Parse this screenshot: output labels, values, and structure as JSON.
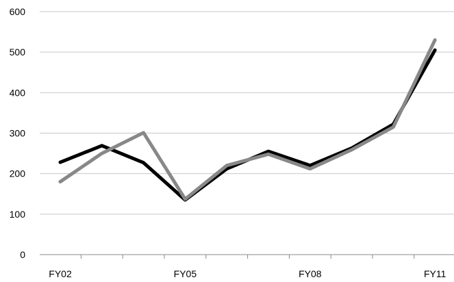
{
  "chart_data": {
    "type": "line",
    "title": "",
    "xlabel": "",
    "ylabel": "",
    "categories": [
      "FY02",
      "",
      "",
      "FY05",
      "",
      "",
      "FY08",
      "",
      "",
      "FY11"
    ],
    "x_tick_labels": [
      "FY02",
      "FY05",
      "FY08",
      "FY11"
    ],
    "x_tick_label_indices": [
      0,
      3,
      6,
      9
    ],
    "ylim": [
      0,
      600
    ],
    "y_ticks": [
      0,
      100,
      200,
      300,
      400,
      500,
      600
    ],
    "grid": "horizontal",
    "legend": "none",
    "series": [
      {
        "color": "#000000",
        "values": [
          228,
          269,
          227,
          135,
          212,
          255,
          220,
          263,
          322,
          505
        ]
      },
      {
        "color": "#888888",
        "values": [
          180,
          250,
          301,
          137,
          220,
          248,
          212,
          259,
          315,
          530
        ]
      }
    ]
  }
}
